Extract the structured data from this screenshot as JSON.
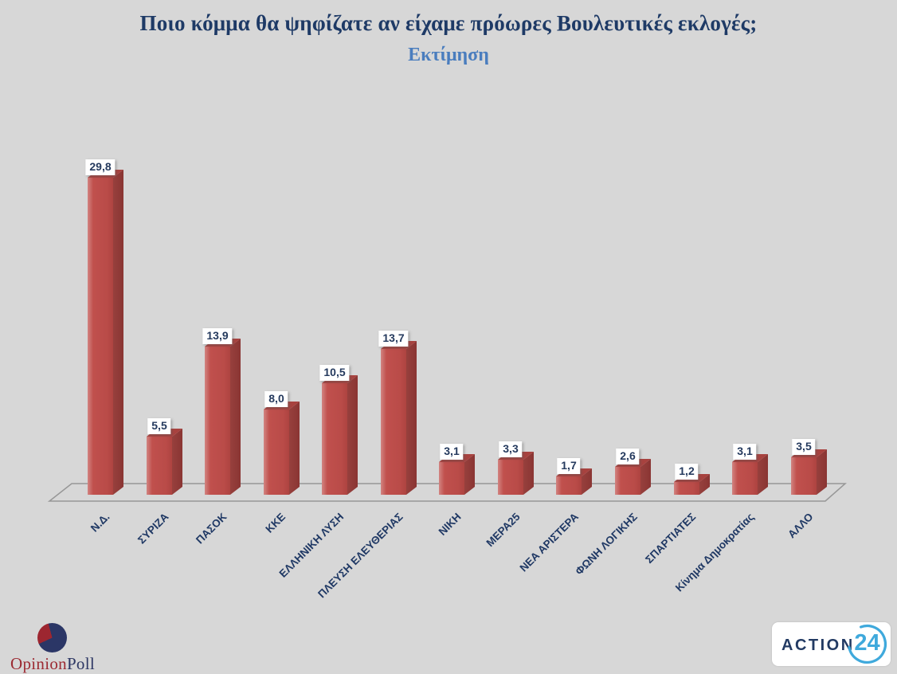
{
  "title": "Ποιο κόμμα θα ψηφίζατε αν είχαμε πρόωρες Βουλευτικές εκλογές;",
  "subtitle": "Εκτίμηση",
  "chart_data": {
    "type": "bar",
    "projection": "3d",
    "title": "Ποιο κόμμα θα ψηφίζατε αν είχαμε πρόωρες Βουλευτικές εκλογές;",
    "subtitle": "Εκτίμηση",
    "categories": [
      "Ν.Δ.",
      "ΣΥΡΙΖΑ",
      "ΠΑΣΟΚ",
      "ΚΚΕ",
      "ΕΛΛΗΝΙΚΗ ΛΥΣΗ",
      "ΠΛΕΥΣΗ ΕΛΕΥΘΕΡΙΑΣ",
      "ΝΙΚΗ",
      "ΜΕΡΑ25",
      "ΝΕΑ ΑΡΙΣΤΕΡΑ",
      "ΦΩΝΗ ΛΟΓΙΚΗΣ",
      "ΣΠΑΡΤΙΑΤΕΣ",
      "Κίνημα Δημοκρατίας",
      "ΑΛΛΟ"
    ],
    "values": [
      29.8,
      5.5,
      13.9,
      8.0,
      10.5,
      13.7,
      3.1,
      3.3,
      1.7,
      2.6,
      1.2,
      3.1,
      3.5
    ],
    "value_labels": [
      "29,8",
      "5,5",
      "13,9",
      "8,0",
      "10,5",
      "13,7",
      "3,1",
      "3,3",
      "1,7",
      "2,6",
      "1,2",
      "3,1",
      "3,5"
    ],
    "ylim": [
      0,
      30
    ],
    "grid": false,
    "legend": false,
    "bar_color": "#c0504d",
    "bar_side_color": "#8a3533",
    "bar_top_color": "#a8423f",
    "value_label_color": "#253a5e",
    "category_label_color": "#1f3864",
    "floor_outline_color": "#979797",
    "background_color": "#d7d7d7",
    "title_color": "#1e3a66",
    "subtitle_color": "#4a7dbe"
  },
  "logos": {
    "opinion_poll": {
      "text_part1": "Opinion",
      "text_part2": "Poll",
      "part1_color": "#9c2b33",
      "part2_color": "#2c3663",
      "pie_main_color": "#2b3666",
      "pie_slice_color": "#9d2630"
    },
    "action24": {
      "text_action": "ACTION",
      "text_number": "24",
      "action_color": "#223a63",
      "accent_color": "#3fa9dc"
    }
  }
}
